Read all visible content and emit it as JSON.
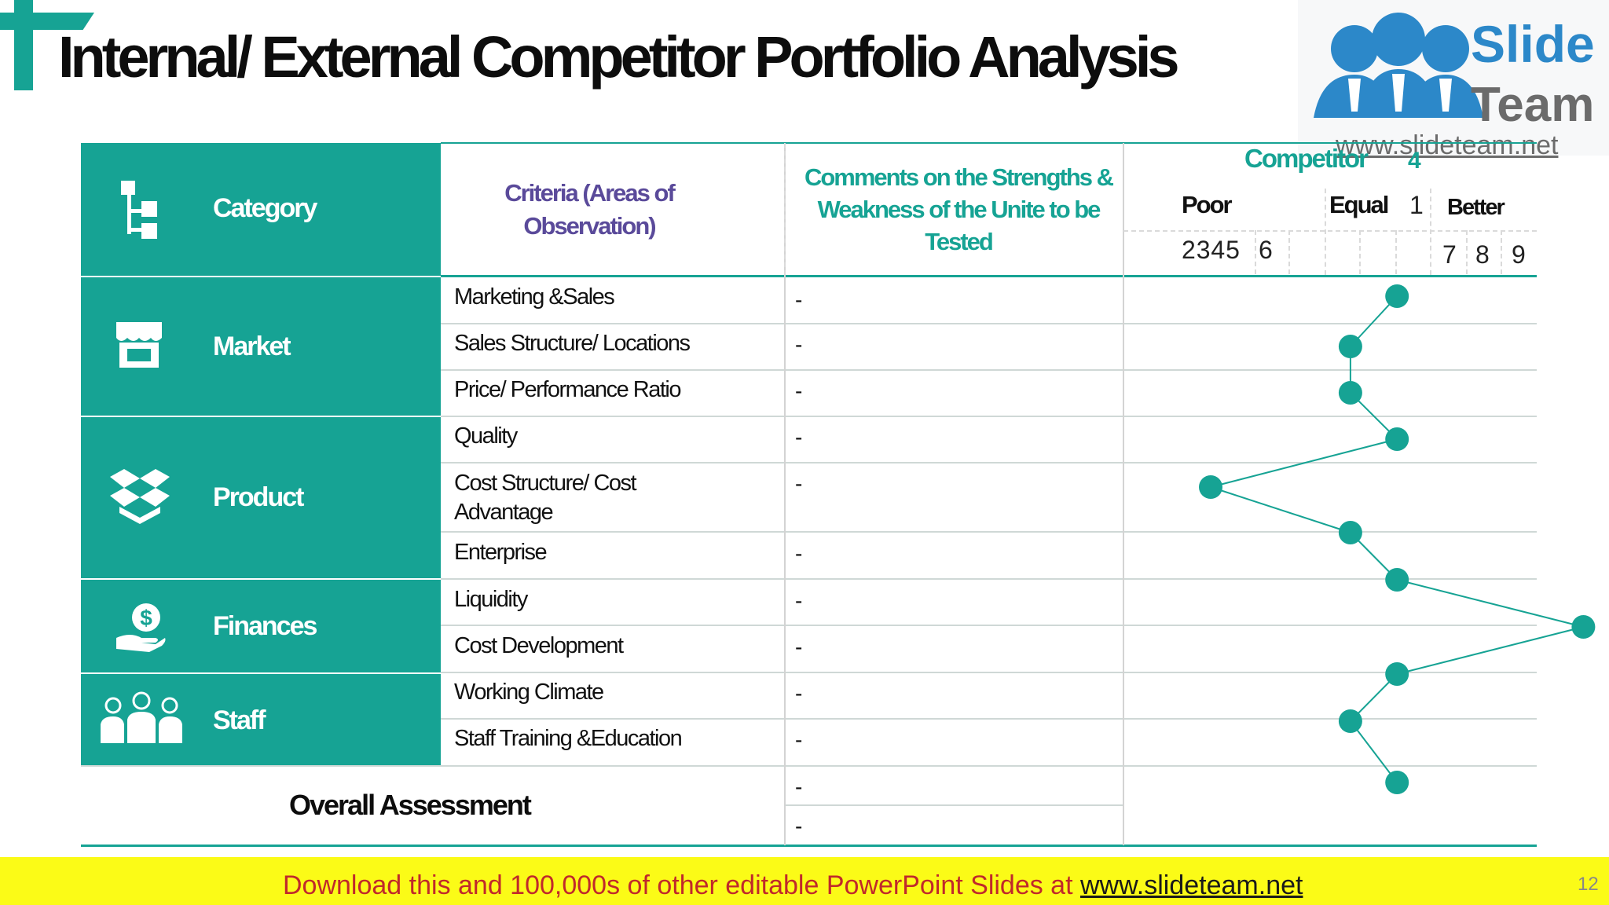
{
  "slide": {
    "title": "Internal/ External Competitor Portfolio  Analysis",
    "page_number": "12"
  },
  "logo": {
    "line1": "Slide",
    "line2": "Team",
    "url": "www.slideteam.net"
  },
  "header": {
    "category": "Category",
    "criteria_line1": "Criteria (Areas of",
    "criteria_line2": "Observation)",
    "comments_line1": "Comments on the  Strengths &",
    "comments_line2": "Weakness  of the Unite to be",
    "comments_line3": "Tested",
    "competitor": "Competitor",
    "competitor_number": "4",
    "poor": "Poor",
    "equal": "Equal",
    "one": "1",
    "better": "Better",
    "poor_numbers": "2 3 4 5",
    "six": "6",
    "seven": "7",
    "eight": "8",
    "nine": "9"
  },
  "categories": [
    {
      "label": "Market",
      "icon": "store-icon"
    },
    {
      "label": "Product",
      "icon": "box-icon"
    },
    {
      "label": "Finances",
      "icon": "money-hand-icon"
    },
    {
      "label": "Staff",
      "icon": "team-icon"
    }
  ],
  "criteria": [
    "Marketing &Sales",
    "Sales Structure/ Locations",
    "Price/ Performance Ratio",
    "Quality",
    "Cost Structure/ Cost",
    "Advantage",
    "Enterprise",
    "Liquidity",
    "Cost Development",
    "Working Climate",
    "Staff Training &Education"
  ],
  "comment_placeholder": "-",
  "overall_assessment": "Overall Assessment",
  "footer": {
    "text": "Download this and 100,000s of other editable PowerPoint Slides at ",
    "link": "www.slideteam.net"
  },
  "colors": {
    "teal": "#16a394",
    "purple": "#5a4a9a",
    "footer_yellow": "#fbfb17",
    "footer_red": "#c0292b"
  },
  "chart_data": {
    "type": "line",
    "categories": [
      "Marketing &Sales",
      "Sales Structure/ Locations",
      "Price/ Performance Ratio",
      "Quality",
      "Cost Structure/ Cost Advantage",
      "Enterprise",
      "Liquidity",
      "Cost Development",
      "Working Climate",
      "Staff Training &Education",
      "Overall Assessment"
    ],
    "values": [
      5,
      4,
      4,
      5,
      1,
      4,
      5,
      9,
      5,
      4,
      5
    ],
    "xlim": [
      1,
      9
    ]
  }
}
